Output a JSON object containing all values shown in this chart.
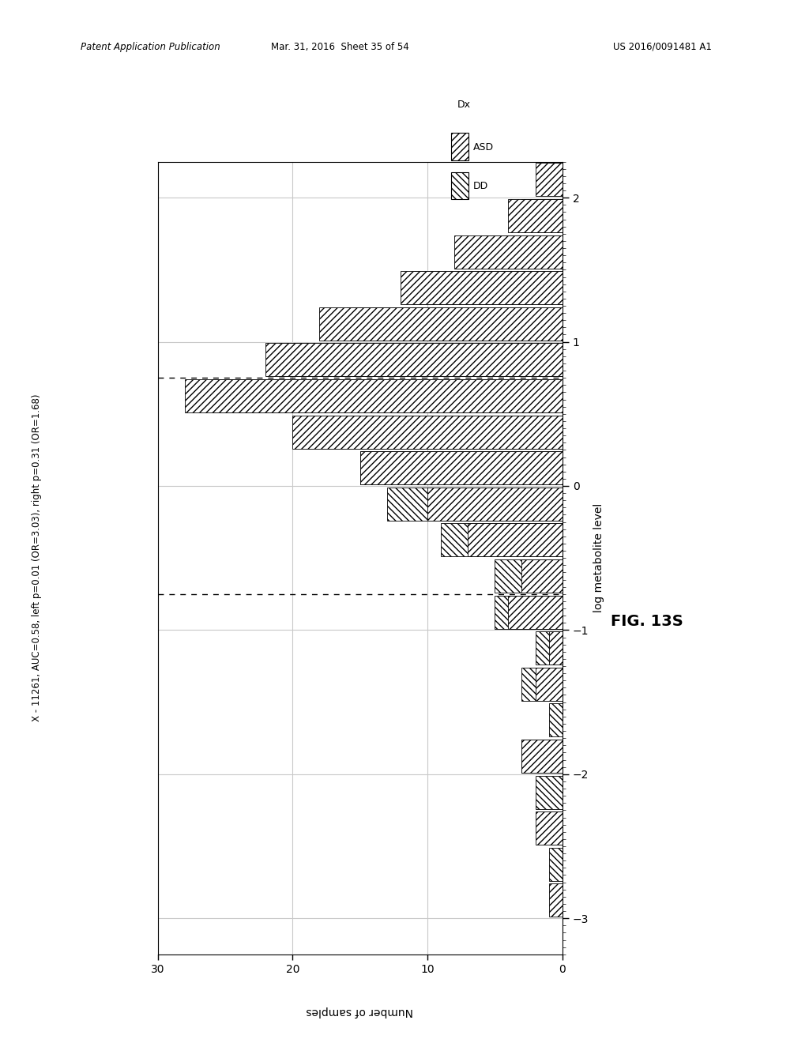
{
  "title_text": "X - 11261, AUC=0.58, left p=0.01 (OR=3.03), right p=0.31 (OR=1.68)",
  "xlabel": "Number of samples",
  "ylabel": "log metabolite level",
  "fig_label": "FIG. 13S",
  "header_left": "Patent Application Publication",
  "header_mid": "Mar. 31, 2016  Sheet 35 of 54",
  "header_right": "US 2016/0091481 A1",
  "xlim": [
    30,
    0
  ],
  "ylim": [
    -3.25,
    2.25
  ],
  "yticks": [
    -3,
    -2,
    -1,
    0,
    1,
    2
  ],
  "xticks": [
    30,
    20,
    10,
    0
  ],
  "dashed_lines": [
    0.75,
    -0.75
  ],
  "bins_y": [
    -3.0,
    -2.75,
    -2.5,
    -2.25,
    -2.0,
    -1.75,
    -1.5,
    -1.25,
    -1.0,
    -0.75,
    -0.5,
    -0.25,
    0.0,
    0.25,
    0.5,
    0.75,
    1.0,
    1.25,
    1.5,
    1.75,
    2.0
  ],
  "asd_counts": [
    1,
    0,
    2,
    0,
    3,
    0,
    2,
    1,
    4,
    3,
    7,
    10,
    15,
    20,
    28,
    22,
    18,
    12,
    8,
    4,
    2
  ],
  "dd_counts": [
    0,
    1,
    1,
    2,
    3,
    1,
    3,
    2,
    5,
    5,
    9,
    13,
    15,
    19,
    26,
    21,
    16,
    11,
    6,
    3,
    1
  ],
  "bin_width": 0.25,
  "grid_color": "#c8c8c8",
  "background_color": "#ffffff"
}
